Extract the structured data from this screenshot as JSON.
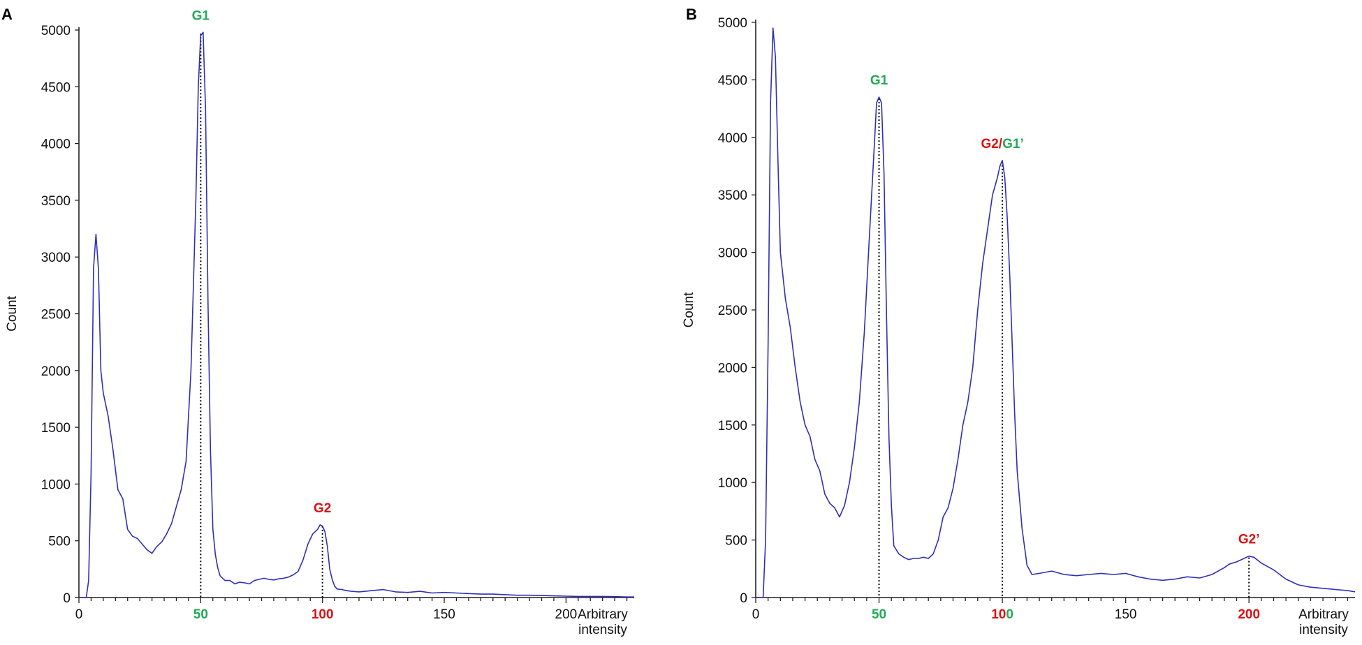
{
  "chart_data": [
    {
      "panel": "A",
      "type": "line",
      "ylabel": "Count",
      "xlabel": "Arbitrary intensity",
      "xlabel_lines": [
        "Arbitrary",
        "intensity"
      ],
      "xlim": [
        0,
        228
      ],
      "ylim": [
        0,
        5000
      ],
      "yticks": [
        0,
        500,
        1000,
        1500,
        2000,
        2500,
        3000,
        3500,
        4000,
        4500,
        5000
      ],
      "xticks": [
        {
          "value": 0,
          "label": "0",
          "color": "#111111",
          "bold": false,
          "parts": [
            {
              "text": "0",
              "color": "#111111"
            }
          ]
        },
        {
          "value": 50,
          "label": "50",
          "color": "#22aa55",
          "bold": true,
          "parts": [
            {
              "text": "50",
              "color": "#22aa55"
            }
          ]
        },
        {
          "value": 100,
          "label": "100",
          "color": "#dd1111",
          "bold": true,
          "parts": [
            {
              "text": "100",
              "color": "#dd1111"
            }
          ]
        },
        {
          "value": 150,
          "label": "150",
          "color": "#111111",
          "bold": false,
          "parts": [
            {
              "text": "150",
              "color": "#111111"
            }
          ]
        },
        {
          "value": 200,
          "label": "200",
          "color": "#111111",
          "bold": false,
          "parts": [
            {
              "text": "200",
              "color": "#111111"
            }
          ]
        }
      ],
      "series_color": "#2f2fb8",
      "x": [
        0,
        3,
        4,
        5,
        6,
        7,
        8,
        9,
        10,
        12,
        14,
        16,
        18,
        20,
        22,
        24,
        26,
        28,
        30,
        32,
        34,
        36,
        38,
        40,
        42,
        44,
        46,
        48,
        49,
        50,
        51,
        52,
        53,
        54,
        55,
        56,
        57,
        58,
        60,
        62,
        64,
        66,
        68,
        70,
        72,
        74,
        76,
        78,
        80,
        82,
        84,
        86,
        88,
        90,
        92,
        94,
        96,
        98,
        99,
        100,
        101,
        102,
        103,
        104,
        105,
        106,
        108,
        110,
        112,
        115,
        120,
        125,
        130,
        135,
        140,
        145,
        150,
        155,
        160,
        165,
        170,
        175,
        180,
        185,
        190,
        195,
        200,
        205,
        210,
        215,
        220,
        225,
        228
      ],
      "y": [
        0,
        0,
        150,
        1100,
        2900,
        3200,
        2900,
        2000,
        1800,
        1600,
        1300,
        950,
        870,
        600,
        540,
        520,
        470,
        420,
        390,
        450,
        490,
        560,
        650,
        800,
        950,
        1200,
        2000,
        3500,
        4500,
        4950,
        4980,
        4300,
        2600,
        1300,
        600,
        380,
        260,
        190,
        150,
        150,
        120,
        135,
        130,
        120,
        150,
        160,
        170,
        160,
        155,
        165,
        170,
        180,
        200,
        230,
        330,
        470,
        560,
        600,
        640,
        630,
        580,
        450,
        250,
        160,
        100,
        75,
        70,
        60,
        55,
        50,
        60,
        70,
        50,
        45,
        55,
        40,
        45,
        40,
        35,
        30,
        30,
        25,
        20,
        20,
        18,
        15,
        12,
        10,
        10,
        10,
        8,
        5,
        5
      ],
      "peaks": [
        {
          "label": "G1",
          "x": 50,
          "y": 4980,
          "color": "#22aa55",
          "parts": [
            {
              "text": "G1",
              "color": "#22aa55"
            }
          ]
        },
        {
          "label": "G2",
          "x": 100,
          "y": 640,
          "color": "#dd1111",
          "parts": [
            {
              "text": "G2",
              "color": "#dd1111"
            }
          ]
        }
      ],
      "grid": false
    },
    {
      "panel": "B",
      "type": "line",
      "ylabel": "Count",
      "xlabel": "Arbitrary intensity",
      "xlabel_lines": [
        "Arbitrary",
        "intensity"
      ],
      "xlim": [
        0,
        243
      ],
      "ylim": [
        0,
        5000
      ],
      "yticks": [
        0,
        500,
        1000,
        1500,
        2000,
        2500,
        3000,
        3500,
        4000,
        4500,
        5000
      ],
      "xticks": [
        {
          "value": 0,
          "label": "0",
          "parts": [
            {
              "text": "0",
              "color": "#111111"
            }
          ],
          "bold": false
        },
        {
          "value": 50,
          "label": "50",
          "parts": [
            {
              "text": "50",
              "color": "#22aa55"
            }
          ],
          "bold": true
        },
        {
          "value": 100,
          "label": "100",
          "parts": [
            {
              "text": "10",
              "color": "#dd1111"
            },
            {
              "text": "0",
              "color": "#22aa55"
            }
          ],
          "bold": true
        },
        {
          "value": 150,
          "label": "150",
          "parts": [
            {
              "text": "150",
              "color": "#111111"
            }
          ],
          "bold": false
        },
        {
          "value": 200,
          "label": "200",
          "parts": [
            {
              "text": "200",
              "color": "#dd1111"
            }
          ],
          "bold": true
        }
      ],
      "series_color": "#2f2fb8",
      "x": [
        0,
        3,
        4,
        5,
        6,
        7,
        8,
        9,
        10,
        12,
        14,
        16,
        18,
        20,
        22,
        24,
        26,
        28,
        30,
        32,
        34,
        36,
        38,
        40,
        42,
        44,
        46,
        48,
        49,
        50,
        51,
        52,
        53,
        54,
        55,
        56,
        58,
        60,
        62,
        64,
        66,
        68,
        70,
        72,
        74,
        76,
        78,
        80,
        82,
        84,
        86,
        88,
        90,
        92,
        94,
        96,
        98,
        99,
        100,
        101,
        102,
        103,
        104,
        105,
        106,
        108,
        110,
        112,
        115,
        120,
        125,
        130,
        135,
        140,
        145,
        150,
        155,
        160,
        165,
        170,
        175,
        180,
        185,
        190,
        192,
        195,
        198,
        200,
        202,
        205,
        210,
        215,
        220,
        225,
        230,
        235,
        240,
        243
      ],
      "y": [
        0,
        0,
        500,
        2200,
        4300,
        4950,
        4700,
        3800,
        3000,
        2600,
        2350,
        2000,
        1700,
        1500,
        1400,
        1200,
        1100,
        900,
        820,
        780,
        700,
        800,
        1000,
        1300,
        1700,
        2300,
        3100,
        3900,
        4300,
        4350,
        4300,
        3700,
        2500,
        1400,
        800,
        450,
        380,
        350,
        330,
        340,
        340,
        350,
        340,
        380,
        500,
        700,
        780,
        950,
        1200,
        1500,
        1700,
        2000,
        2500,
        2900,
        3200,
        3500,
        3650,
        3750,
        3800,
        3650,
        3300,
        2800,
        2200,
        1600,
        1100,
        600,
        280,
        200,
        210,
        230,
        200,
        190,
        200,
        210,
        200,
        210,
        180,
        160,
        150,
        160,
        180,
        170,
        200,
        260,
        290,
        310,
        340,
        360,
        350,
        300,
        240,
        160,
        110,
        90,
        80,
        70,
        60,
        50
      ],
      "peaks": [
        {
          "label": "G1",
          "x": 50,
          "y": 4350,
          "color": "#22aa55",
          "parts": [
            {
              "text": "G1",
              "color": "#22aa55"
            }
          ]
        },
        {
          "label": "G2/G1’",
          "x": 100,
          "y": 3800,
          "parts": [
            {
              "text": "G2/",
              "color": "#dd1111"
            },
            {
              "text": "G1’",
              "color": "#22aa55"
            }
          ]
        },
        {
          "label": "G2’",
          "x": 200,
          "y": 360,
          "color": "#dd1111",
          "parts": [
            {
              "text": "G2’",
              "color": "#dd1111"
            }
          ]
        }
      ],
      "grid": false
    }
  ]
}
